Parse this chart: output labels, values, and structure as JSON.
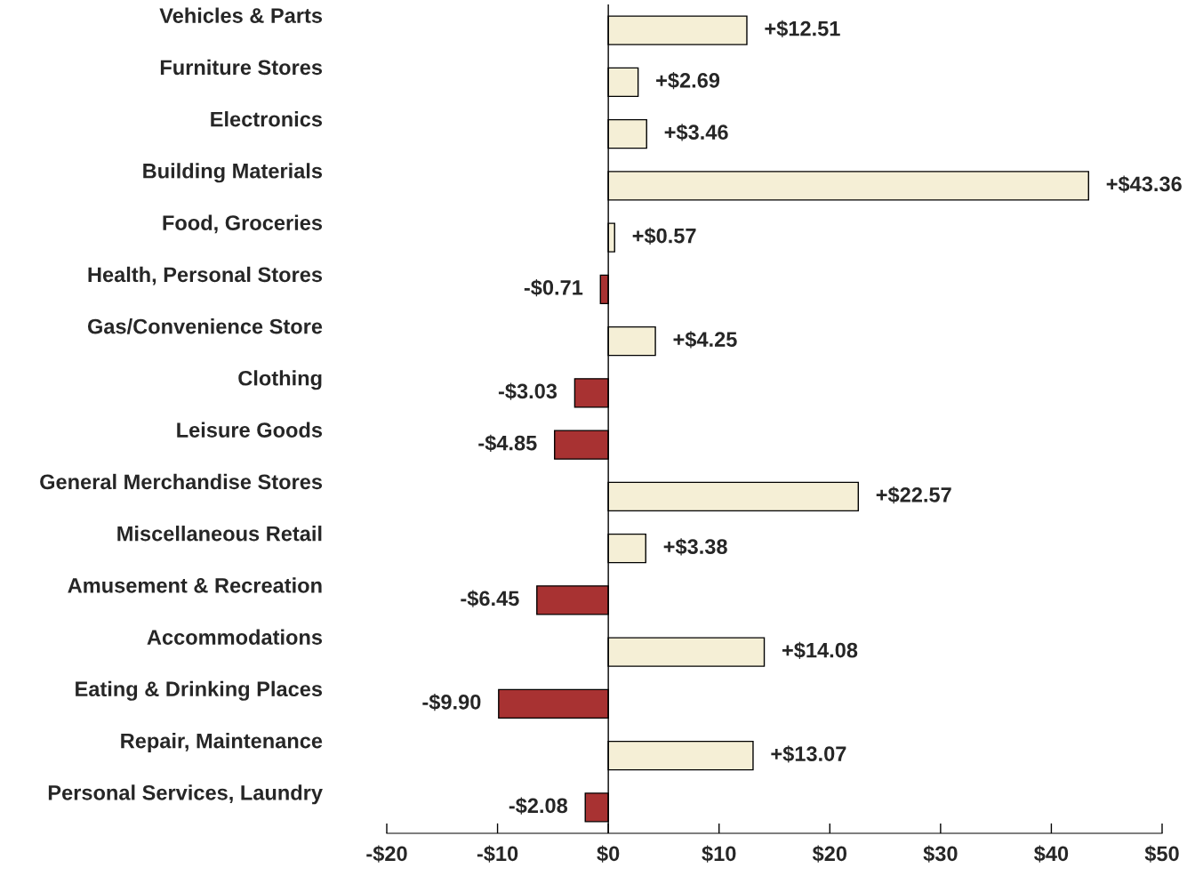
{
  "chart_data": {
    "type": "bar",
    "orientation": "horizontal",
    "categories": [
      "Vehicles & Parts",
      "Furniture Stores",
      "Electronics",
      "Building Materials",
      "Food, Groceries",
      "Health, Personal Stores",
      "Gas/Convenience Store",
      "Clothing",
      "Leisure Goods",
      "General Merchandise Stores",
      "Miscellaneous Retail",
      "Amusement & Recreation",
      "Accommodations",
      "Eating & Drinking Places",
      "Repair, Maintenance",
      "Personal Services, Laundry"
    ],
    "values": [
      12.51,
      2.69,
      3.46,
      43.36,
      0.57,
      -0.71,
      4.25,
      -3.03,
      -4.85,
      22.57,
      3.38,
      -6.45,
      14.08,
      -9.9,
      13.07,
      -2.08
    ],
    "colors": [
      "#f5efd6",
      "#f5efd6",
      "#f5efd6",
      "#f5efd6",
      "#f5efd6",
      "#a83232",
      "#f5efd6",
      "#a83232",
      "#a83232",
      "#f5efd6",
      "#f5efd6",
      "#a83232",
      "#f5efd6",
      "#a83232",
      "#f5efd6",
      "#a83232"
    ],
    "value_labels": [
      "+$12.51",
      "+$2.69",
      "+$3.46",
      "+$43.36",
      "+$0.57",
      "-$0.71",
      "+$4.25",
      "-$3.03",
      "-$4.85",
      "+$22.57",
      "+$3.38",
      "-$6.45",
      "+$14.08",
      "-$9.90",
      "+$13.07",
      "-$2.08"
    ],
    "xlim": [
      -20,
      50
    ],
    "xticks": [
      {
        "value": -20,
        "label": "-$20"
      },
      {
        "value": -10,
        "label": "-$10"
      },
      {
        "value": 0,
        "label": "$0"
      },
      {
        "value": 10,
        "label": "$10"
      },
      {
        "value": 20,
        "label": "$20"
      },
      {
        "value": 30,
        "label": "$30"
      },
      {
        "value": 40,
        "label": "$40"
      },
      {
        "value": 50,
        "label": "$50"
      }
    ],
    "ref_lines": [
      {
        "axis": "x",
        "value": 0,
        "color": "#000000"
      }
    ],
    "grid": false,
    "legend": false
  }
}
